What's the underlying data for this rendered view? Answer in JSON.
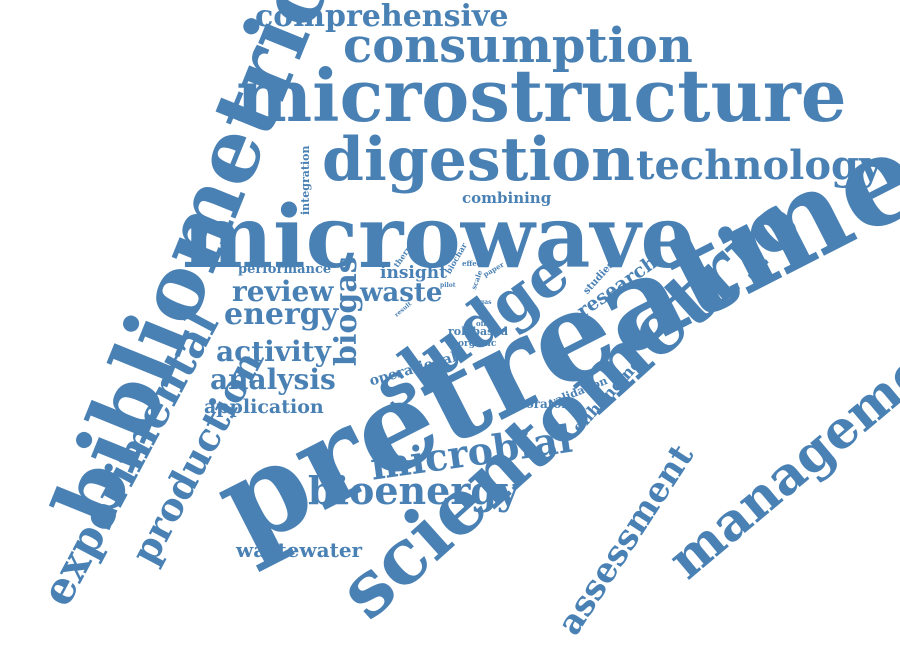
{
  "color": "#4a81b4",
  "words": {
    "comprehensive": "comprehensive",
    "consumption": "consumption",
    "microstructure": "microstructure",
    "digestion": "digestion",
    "technology": "technology",
    "integration": "integration",
    "combining": "combining",
    "microwave": "microwave",
    "bibliometric": "bibliometric",
    "experimental": "experimental",
    "production": "production",
    "performance": "performance",
    "review": "review",
    "energy": "energy",
    "activity": "activity",
    "analysis": "analysis",
    "application": "application",
    "biogas": "biogas",
    "insight": "insight",
    "waste": "waste",
    "thermal": "thermal",
    "biochar": "biochar",
    "effect": "effect",
    "scale": "scale",
    "paper": "paper",
    "pilot": "pilot",
    "result": "result",
    "gas": "gas",
    "offer": "offer",
    "sludge": "sludge",
    "operational": "operational",
    "rolebased": "rolebased",
    "organic": "organic",
    "studies": "studies",
    "research": "research",
    "validation": "validation",
    "enhancing": "enhancing",
    "laboratory": "laboratory",
    "pretreatment": "pretreatment",
    "microbial": "microbial",
    "bioenergy": "bioenergy",
    "wastewater": "wastewater",
    "scientometric": "scientometric",
    "management": "management",
    "assessment": "assessment"
  }
}
